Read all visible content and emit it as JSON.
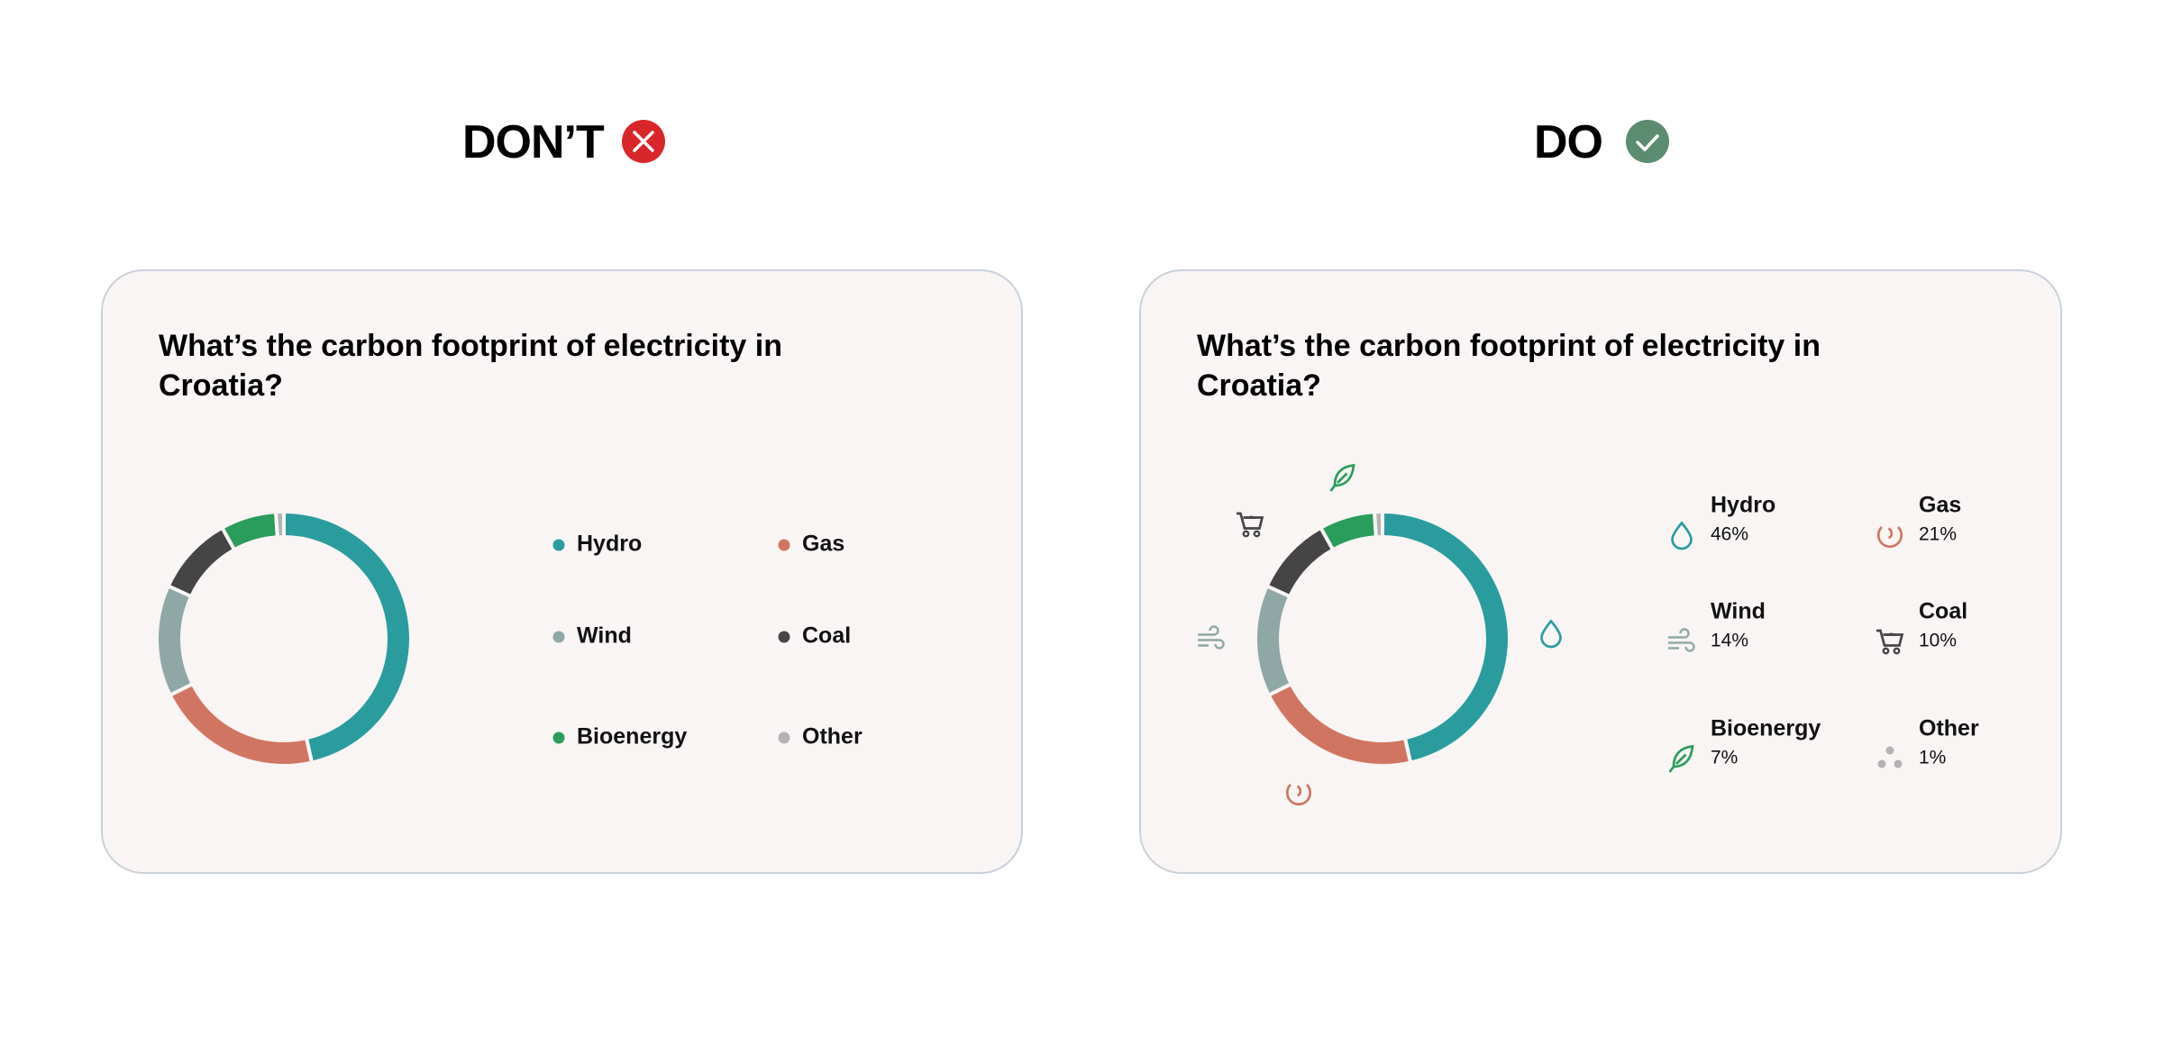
{
  "headings": [
    "DON’T",
    "DO"
  ],
  "chart_data": [
    {
      "type": "pie",
      "title": "What’s the carbon footprint of electricity in Croatia?",
      "categories": [
        "Hydro",
        "Gas",
        "Wind",
        "Coal",
        "Bioenergy",
        "Other"
      ],
      "values": [
        46,
        21,
        14,
        10,
        7,
        1
      ],
      "colors": [
        "#2a9c9e",
        "#d07562",
        "#8fa8a6",
        "#454545",
        "#2a9c5b",
        "#b3b3b3"
      ]
    },
    {
      "type": "pie",
      "title": "What’s the carbon footprint of electricity in Croatia?",
      "categories": [
        "Hydro",
        "Gas",
        "Wind",
        "Coal",
        "Bioenergy",
        "Other"
      ],
      "values": [
        46,
        21,
        14,
        10,
        7,
        1
      ],
      "value_labels": [
        "46%",
        "21%",
        "14%",
        "10%",
        "7%",
        "1%"
      ],
      "colors": [
        "#2a9c9e",
        "#d07562",
        "#8fa8a6",
        "#454545",
        "#2a9c5b",
        "#b3b3b3"
      ]
    }
  ]
}
